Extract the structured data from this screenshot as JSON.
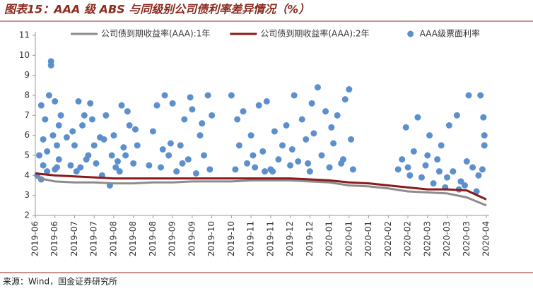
{
  "chart_data": {
    "type": "scatter-line",
    "title": "图表15：AAA 级 ABS 与同级别公司债利率差异情况（%）",
    "source": "来源：Wind，国金证券研究所",
    "categories": [
      "2019-06",
      "2019-06",
      "2019-07",
      "2019-07",
      "2019-08",
      "2019-08",
      "2019-08",
      "2019-09",
      "2019-09",
      "2019-10",
      "2019-10",
      "2019-11",
      "2019-11",
      "2019-12",
      "2019-12",
      "2020-01",
      "2020-01",
      "2020-01",
      "2020-02",
      "2020-02",
      "2020-03",
      "2020-03",
      "2020-03",
      "2020-04"
    ],
    "xlim": [
      0,
      23
    ],
    "ylim": [
      2,
      11
    ],
    "yticks": [
      2,
      3,
      4,
      5,
      6,
      7,
      8,
      9,
      10,
      11
    ],
    "legend": "top",
    "series": [
      {
        "name": "公司债到期收益率(AAA):1年",
        "type": "line",
        "color": "#8c8c8c",
        "values": [
          3.9,
          3.7,
          3.65,
          3.65,
          3.6,
          3.6,
          3.65,
          3.65,
          3.7,
          3.7,
          3.7,
          3.75,
          3.75,
          3.75,
          3.7,
          3.65,
          3.5,
          3.45,
          3.35,
          3.2,
          3.15,
          3.1,
          2.9,
          2.5
        ]
      },
      {
        "name": "公司债到期收益率(AAA):2年",
        "type": "line",
        "color": "#8b1a1a",
        "values": [
          4.1,
          4.0,
          3.95,
          3.9,
          3.85,
          3.85,
          3.85,
          3.85,
          3.85,
          3.85,
          3.85,
          3.85,
          3.85,
          3.85,
          3.8,
          3.75,
          3.65,
          3.6,
          3.5,
          3.4,
          3.3,
          3.3,
          3.25,
          2.8
        ]
      },
      {
        "name": "AAA级票面利率",
        "type": "scatter",
        "color": "#5b8fce",
        "x": [
          0.1,
          0.2,
          0.3,
          0.4,
          0.5,
          0.6,
          0.8,
          1.0,
          1.1,
          1.2,
          1.3,
          0.9,
          0.7,
          1.0,
          0.4,
          1.2,
          0.8,
          0.6,
          1.1,
          0.3,
          1.6,
          1.8,
          2.0,
          2.2,
          2.4,
          2.6,
          2.8,
          3.0,
          2.1,
          2.5,
          1.9,
          2.7,
          2.3,
          2.9,
          3.1,
          3.3,
          3.4,
          3.6,
          3.8,
          4.0,
          4.2,
          4.4,
          4.6,
          4.8,
          5.0,
          5.2,
          3.9,
          4.3,
          4.7,
          5.1,
          3.5,
          4.1,
          4.5,
          5.8,
          6.0,
          6.2,
          6.4,
          6.6,
          6.8,
          7.0,
          7.2,
          7.4,
          7.6,
          7.8,
          8.0,
          8.2,
          8.4,
          8.6,
          8.8,
          9.0,
          6.9,
          7.5,
          8.9,
          8.5,
          6.5,
          7.9,
          10.0,
          10.2,
          10.4,
          10.6,
          10.8,
          11.0,
          11.2,
          11.4,
          11.6,
          11.8,
          12.0,
          12.2,
          12.4,
          12.6,
          12.8,
          13.0,
          13.2,
          13.4,
          13.6,
          13.8,
          14.0,
          14.2,
          14.4,
          14.6,
          14.8,
          15.0,
          15.2,
          15.4,
          15.6,
          15.8,
          16.0,
          16.2,
          10.3,
          11.1,
          12.1,
          13.1,
          14.1,
          15.1,
          16.1,
          11.7,
          13.9,
          15.7,
          18.5,
          18.7,
          18.9,
          19.1,
          19.3,
          19.5,
          19.7,
          19.9,
          20.1,
          20.3,
          20.5,
          20.7,
          20.9,
          21.1,
          21.3,
          21.5,
          21.7,
          21.9,
          22.1,
          22.3,
          22.5,
          22.7,
          22.9,
          22.8,
          22.9,
          19.0,
          20.0,
          21.0,
          22.0,
          22.85,
          21.6,
          22.6,
          20.6
        ],
        "values": [
          4.0,
          5.0,
          7.5,
          4.5,
          6.8,
          4.2,
          9.7,
          7.7,
          5.5,
          4.8,
          7.0,
          6.0,
          8.0,
          4.3,
          5.8,
          6.5,
          9.5,
          5.2,
          4.4,
          3.8,
          5.9,
          4.5,
          5.5,
          7.7,
          6.5,
          4.8,
          7.6,
          5.5,
          4.2,
          7.0,
          6.2,
          5.0,
          4.4,
          6.8,
          4.6,
          5.9,
          4.0,
          7.0,
          3.5,
          6.0,
          4.7,
          7.5,
          5.0,
          6.5,
          4.6,
          5.5,
          5.0,
          4.2,
          7.2,
          6.3,
          5.8,
          4.4,
          5.4,
          4.5,
          6.2,
          7.5,
          4.4,
          8.0,
          5.0,
          7.6,
          4.2,
          5.5,
          6.8,
          4.8,
          7.3,
          4.1,
          6.0,
          5.0,
          8.0,
          7.0,
          5.6,
          4.6,
          4.3,
          6.6,
          5.3,
          7.9,
          8.0,
          4.3,
          5.5,
          7.2,
          4.6,
          6.0,
          4.4,
          7.5,
          5.2,
          7.7,
          4.3,
          6.2,
          4.8,
          5.5,
          6.5,
          4.5,
          8.0,
          4.7,
          6.8,
          5.8,
          4.2,
          6.1,
          8.4,
          5.0,
          7.2,
          4.4,
          5.6,
          7.0,
          4.6,
          7.8,
          8.3,
          4.3,
          6.8,
          5.0,
          4.2,
          5.3,
          7.6,
          6.4,
          5.8,
          4.2,
          4.6,
          4.8,
          4.3,
          4.8,
          6.4,
          4.0,
          5.2,
          6.9,
          3.9,
          4.5,
          6.0,
          3.6,
          4.8,
          5.5,
          3.4,
          6.5,
          4.2,
          7.0,
          3.7,
          3.5,
          8.0,
          4.4,
          3.2,
          8.0,
          6.0,
          4.3,
          5.5,
          4.4,
          5.0,
          3.9,
          4.7,
          6.9,
          3.3,
          4.0,
          4.2
        ]
      }
    ]
  }
}
